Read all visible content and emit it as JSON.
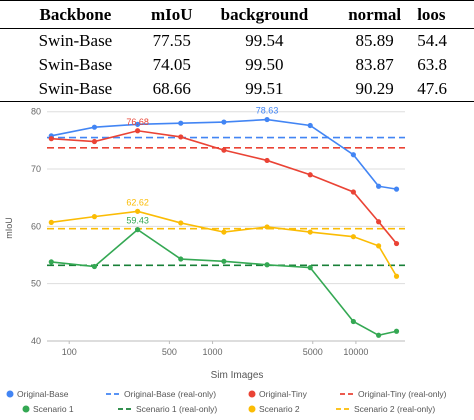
{
  "table": {
    "header": [
      "Backbone",
      "mIoU",
      "background",
      "normal",
      "loos"
    ],
    "rows": [
      [
        "Swin-Base",
        "77.55",
        "99.54",
        "85.89",
        "54.4"
      ],
      [
        "Swin-Base",
        "74.05",
        "99.50",
        "83.87",
        "63.8"
      ],
      [
        "Swin-Base",
        "68.66",
        "99.51",
        "90.29",
        "47.6"
      ]
    ]
  },
  "chart_data": {
    "type": "line",
    "x_label": "Sim Images",
    "y_label": "mIoU",
    "x": [
      75,
      150,
      300,
      600,
      1200,
      2400,
      4800,
      9600,
      14400,
      19200
    ],
    "xlim": [
      70,
      22000
    ],
    "xticks": [
      100,
      500,
      1000,
      5000,
      10000
    ],
    "x_log": true,
    "ylim": [
      40,
      81
    ],
    "yticks": [
      40,
      50,
      60,
      70,
      80
    ],
    "grid": true,
    "series": [
      {
        "name": "Original-Base",
        "color": "#4285f4",
        "values": [
          75.8,
          77.3,
          77.8,
          78.0,
          78.2,
          78.63,
          77.6,
          72.5,
          67.0,
          66.5
        ],
        "value_labels": [
          null,
          null,
          null,
          null,
          null,
          "78.63",
          null,
          null,
          null,
          null
        ]
      },
      {
        "name": "Original-Tiny",
        "color": "#ea4335",
        "values": [
          75.3,
          74.8,
          76.68,
          75.6,
          73.3,
          71.5,
          69.0,
          66.0,
          60.8,
          57.0
        ],
        "value_labels": [
          null,
          null,
          "76.68",
          null,
          null,
          null,
          null,
          null,
          null,
          null
        ]
      },
      {
        "name": "Scenario 1",
        "color": "#34a853",
        "values": [
          53.8,
          53.0,
          59.43,
          54.3,
          53.9,
          53.3,
          52.8,
          43.4,
          41.0,
          41.7
        ],
        "value_labels": [
          null,
          null,
          "59.43",
          null,
          null,
          null,
          null,
          null,
          null,
          null
        ]
      },
      {
        "name": "Scenario 2",
        "color": "#fbbc04",
        "values": [
          60.7,
          61.7,
          62.62,
          60.6,
          59.0,
          59.9,
          59.0,
          58.2,
          56.6,
          51.3
        ],
        "value_labels": [
          null,
          null,
          "62.62",
          null,
          null,
          null,
          null,
          null,
          null,
          null
        ]
      }
    ],
    "reference_lines": [
      {
        "name": "Original-Base (real-only)",
        "color": "#4285f4",
        "value": 75.5
      },
      {
        "name": "Original-Tiny (real-only)",
        "color": "#ea4335",
        "value": 73.7
      },
      {
        "name": "Scenario 1 (real-only)",
        "color": "#188038",
        "value": 53.2
      },
      {
        "name": "Scenario 2 (real-only)",
        "color": "#fbbc04",
        "value": 59.6
      }
    ]
  }
}
